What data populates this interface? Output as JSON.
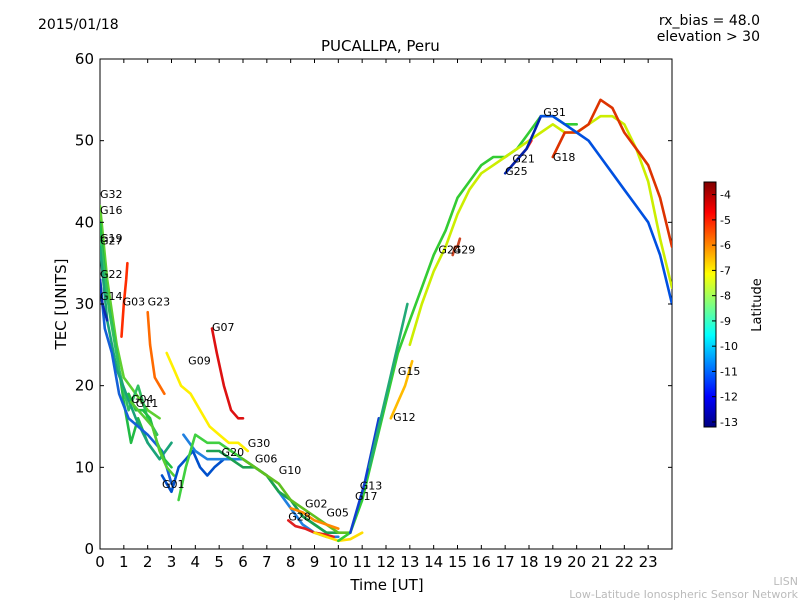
{
  "header": {
    "date": "2015/01/18",
    "rx_bias": "rx_bias = 48.0",
    "elevation": "elevation > 30"
  },
  "footer": {
    "line1": "LISN",
    "line2": "Low-Latitude Ionospheric Sensor Network"
  },
  "chart_data": {
    "type": "line",
    "title": "PUCALLPA, Peru",
    "xlabel": "Time [UT]",
    "ylabel": "TEC [UNITS]",
    "xlim": [
      0,
      24
    ],
    "ylim": [
      0,
      60
    ],
    "x_ticks": [
      "0",
      "1",
      "2",
      "3",
      "4",
      "5",
      "6",
      "7",
      "8",
      "9",
      "10",
      "11",
      "12",
      "13",
      "14",
      "15",
      "16",
      "17",
      "18",
      "19",
      "20",
      "21",
      "22",
      "23"
    ],
    "y_ticks": [
      "0",
      "10",
      "20",
      "30",
      "40",
      "50",
      "60"
    ],
    "colorbar": {
      "label": "Latitude",
      "range": [
        -13.2,
        -3.5
      ],
      "ticks": [
        "-4",
        "-5",
        "-6",
        "-7",
        "-8",
        "-9",
        "-10",
        "-11",
        "-12",
        "-13"
      ],
      "colors": [
        "#00007f",
        "#0000ff",
        "#007fff",
        "#00ffff",
        "#7fff7f",
        "#ffff00",
        "#ff7f00",
        "#ff0000",
        "#7f0000"
      ]
    },
    "series": [
      {
        "name": "G32",
        "label_x": 0.0,
        "label_y": 43.0,
        "color": "#5fd030",
        "x": [
          0,
          0.3,
          0.7,
          1.0,
          1.5,
          2.0,
          2.5
        ],
        "y": [
          42,
          33,
          25,
          21,
          19,
          17,
          16
        ]
      },
      {
        "name": "G16",
        "label_x": 0.0,
        "label_y": 41.0,
        "color": "#22bb44",
        "x": [
          0,
          0.3,
          0.7,
          1.0,
          1.3,
          1.6,
          2.0
        ],
        "y": [
          40,
          31,
          24,
          18,
          13,
          16,
          13
        ]
      },
      {
        "name": "G19",
        "label_x": 0.0,
        "label_y": 37.6,
        "color": "#30c060",
        "x": [
          0,
          0.4,
          0.8,
          1.2,
          1.6,
          2.0,
          2.4
        ],
        "y": [
          38,
          29,
          22,
          17,
          20,
          16,
          14
        ]
      },
      {
        "name": "G27",
        "label_x": 0.0,
        "label_y": 37.3,
        "color": "#1aa37a",
        "x": [
          0,
          0.3,
          0.7,
          1.1,
          1.5,
          2.0,
          2.5,
          3.0
        ],
        "y": [
          37,
          28,
          22,
          19,
          16,
          13,
          11,
          13
        ]
      },
      {
        "name": "G22",
        "label_x": 0.0,
        "label_y": 33.2,
        "color": "#1560d8",
        "x": [
          0,
          0.2,
          0.5,
          0.8,
          1.2,
          1.6,
          2.0,
          2.6,
          3.0
        ],
        "y": [
          33,
          27,
          24,
          19,
          16,
          15,
          14,
          12,
          8
        ]
      },
      {
        "name": "G14",
        "label_x": 0.0,
        "label_y": 30.5,
        "color": "#0b2bb0",
        "x": [
          0,
          0.1,
          0.2,
          0.3
        ],
        "y": [
          33,
          30,
          29,
          28
        ]
      },
      {
        "name": "G03",
        "label_x": 0.95,
        "label_y": 29.8,
        "color": "#ff2d00",
        "x": [
          0.9,
          1.0,
          1.1,
          1.15
        ],
        "y": [
          26,
          30,
          33,
          35
        ]
      },
      {
        "name": "G23",
        "label_x": 2.0,
        "label_y": 29.8,
        "color": "#ff6a00",
        "x": [
          2.0,
          2.1,
          2.3,
          2.5,
          2.7
        ],
        "y": [
          29,
          25,
          21,
          20,
          19
        ]
      },
      {
        "name": "G07",
        "label_x": 4.7,
        "label_y": 26.7,
        "color": "#dd1111",
        "x": [
          4.7,
          4.9,
          5.2,
          5.5,
          5.8,
          6.0
        ],
        "y": [
          27,
          24,
          20,
          17,
          16,
          16
        ]
      },
      {
        "name": "G09",
        "label_x": 3.7,
        "label_y": 22.6,
        "color": "#fff000",
        "x": [
          2.8,
          3.1,
          3.4,
          3.8,
          4.2,
          4.6,
          5.0,
          5.4,
          5.8,
          6.2
        ],
        "y": [
          24,
          22,
          20,
          19,
          17,
          15,
          14,
          13,
          13,
          12
        ]
      },
      {
        "name": "G04",
        "label_x": 1.3,
        "label_y": 17.9,
        "color": "#20c040",
        "x": [
          1.2,
          1.5,
          1.8,
          2.1,
          2.4,
          2.7,
          3.0
        ],
        "y": [
          19,
          17,
          17,
          16,
          13,
          11,
          10
        ]
      },
      {
        "name": "G11",
        "label_x": 1.5,
        "label_y": 17.4,
        "color": "#55cc33",
        "x": [
          1.3,
          1.6,
          1.9,
          2.2,
          2.5,
          2.8,
          3.1
        ],
        "y": [
          18,
          17,
          16,
          15,
          12,
          10,
          9
        ]
      },
      {
        "name": "G01",
        "label_x": 2.6,
        "label_y": 7.5,
        "color": "#0050cc",
        "x": [
          2.6,
          2.8,
          3.0,
          3.3,
          3.6,
          3.9,
          4.2,
          4.5,
          4.8,
          5.2
        ],
        "y": [
          9,
          8,
          7,
          10,
          11,
          12,
          10,
          9,
          10,
          11
        ]
      },
      {
        "name": "G20",
        "label_x": 5.1,
        "label_y": 11.4,
        "color": "#2080e0",
        "x": [
          3.5,
          4.0,
          4.5,
          5.0,
          5.5,
          6.0,
          6.5,
          7.0,
          7.5,
          8.0,
          8.5,
          9.0,
          9.5,
          10.0
        ],
        "y": [
          14,
          12,
          11,
          11,
          11,
          11,
          10,
          9,
          7,
          5,
          3,
          2,
          1.5,
          1.5
        ]
      },
      {
        "name": "G30",
        "label_x": 6.2,
        "label_y": 12.5,
        "color": "#40d040",
        "x": [
          3.3,
          3.6,
          4.0,
          4.5,
          5.0,
          5.5,
          6.0,
          6.5,
          7.0,
          7.5,
          8.0,
          8.5,
          9.0,
          9.5
        ],
        "y": [
          6,
          10,
          14,
          13,
          13,
          12,
          11,
          10,
          9,
          7,
          6,
          4,
          3,
          2
        ]
      },
      {
        "name": "G06",
        "label_x": 6.5,
        "label_y": 10.6,
        "color": "#1ba050",
        "x": [
          4.5,
          5.0,
          5.5,
          6.0,
          6.5,
          7.0,
          7.5,
          8.0,
          8.5,
          9.0,
          9.5,
          10.0
        ],
        "y": [
          12,
          12,
          11,
          10,
          10,
          9,
          7,
          6,
          4,
          3,
          2,
          2
        ]
      },
      {
        "name": "G10",
        "label_x": 7.5,
        "label_y": 9.2,
        "color": "#60c020",
        "x": [
          6.0,
          6.5,
          7.0,
          7.5,
          8.0,
          8.5,
          9.0,
          9.5,
          10.0,
          10.5
        ],
        "y": [
          11,
          10,
          9,
          8,
          6,
          5,
          4,
          3,
          2,
          2
        ]
      },
      {
        "name": "G02",
        "label_x": 8.6,
        "label_y": 5.1,
        "color": "#ff8800",
        "x": [
          8.0,
          8.5,
          9.0,
          9.5,
          10.0
        ],
        "y": [
          5,
          4.5,
          3.5,
          3,
          2.5
        ]
      },
      {
        "name": "G28",
        "label_x": 7.9,
        "label_y": 3.5,
        "color": "#e02020",
        "x": [
          7.9,
          8.2,
          8.6,
          9.0,
          9.4,
          9.8
        ],
        "y": [
          3.5,
          2.8,
          2.5,
          2,
          1.8,
          1.5
        ]
      },
      {
        "name": "G05",
        "label_x": 9.5,
        "label_y": 4.0,
        "color": "#ffdd00",
        "x": [
          9.0,
          9.5,
          10.0,
          10.5,
          11.0
        ],
        "y": [
          2,
          1.5,
          1,
          1.2,
          2
        ]
      },
      {
        "name": "G17",
        "label_x": 10.7,
        "label_y": 6.0,
        "color": "#33cc33",
        "x": [
          10.0,
          10.5,
          11.0,
          11.5,
          12.0,
          12.5,
          13.0,
          13.5,
          14.0,
          14.5,
          15.0,
          15.5,
          16.0,
          16.5,
          17.0,
          17.5,
          18.0,
          18.5,
          19.0,
          19.5,
          20.0
        ],
        "y": [
          1,
          2,
          6,
          12,
          18,
          24,
          28,
          32,
          36,
          39,
          43,
          45,
          47,
          48,
          48,
          49,
          51,
          53,
          53,
          52,
          52
        ]
      },
      {
        "name": "G13",
        "label_x": 10.9,
        "label_y": 7.3,
        "color": "#1040d0",
        "x": [
          10.5,
          10.8,
          11.1,
          11.4,
          11.7
        ],
        "y": [
          2,
          5,
          8,
          12,
          16
        ]
      },
      {
        "name": "G15",
        "label_x": 12.5,
        "label_y": 21.3,
        "color": "#22aa77",
        "x": [
          11.3,
          11.7,
          12.1,
          12.5,
          12.9
        ],
        "y": [
          10,
          15,
          20,
          25,
          30
        ]
      },
      {
        "name": "G12",
        "label_x": 12.3,
        "label_y": 15.7,
        "color": "#ffbb00",
        "x": [
          12.2,
          12.5,
          12.8,
          13.1
        ],
        "y": [
          16,
          18,
          20,
          23
        ]
      },
      {
        "name": "G24",
        "label_x": 14.2,
        "label_y": 36.2,
        "color": "#ccee00",
        "x": [
          13.0,
          13.5,
          14.0,
          14.5,
          15.0,
          15.5,
          16.0,
          16.5,
          17.0,
          17.5,
          18.0,
          18.5,
          19.0,
          19.5,
          20.0,
          20.5,
          21.0,
          21.5,
          22.0,
          22.5,
          23.0,
          23.5,
          24.0
        ],
        "y": [
          25,
          30,
          34,
          37,
          41,
          44,
          46,
          47,
          48,
          49,
          50,
          51,
          52,
          51,
          51,
          52,
          53,
          53,
          52,
          49,
          45,
          38,
          32
        ]
      },
      {
        "name": "G29",
        "label_x": 14.8,
        "label_y": 36.2,
        "color": "#cc4422",
        "x": [
          14.8,
          14.9,
          15.0,
          15.1
        ],
        "y": [
          36,
          37,
          37,
          38
        ]
      },
      {
        "name": "G21",
        "label_x": 17.3,
        "label_y": 47.3,
        "color": "#ff2222",
        "x": [
          17.3,
          17.6,
          17.9,
          18.1
        ],
        "y": [
          47,
          48,
          49,
          50
        ]
      },
      {
        "name": "G25",
        "label_x": 17.0,
        "label_y": 45.8,
        "color": "#0022aa",
        "x": [
          17.0,
          17.3,
          17.6,
          17.9,
          18.2,
          18.5
        ],
        "y": [
          46,
          47,
          48,
          49,
          51,
          53
        ]
      },
      {
        "name": "G18",
        "label_x": 19.0,
        "label_y": 47.5,
        "color": "#dd3300",
        "x": [
          19.0,
          19.5,
          20.0,
          20.5,
          21.0,
          21.5,
          22.0,
          22.5,
          23.0,
          23.5,
          24.0
        ],
        "y": [
          48,
          51,
          51,
          52,
          55,
          54,
          51,
          49,
          47,
          43,
          37
        ]
      },
      {
        "name": "G31",
        "label_x": 18.6,
        "label_y": 53.0,
        "color": "#0050e0",
        "x": [
          18.5,
          19.0,
          19.5,
          20.0,
          20.5,
          21.0,
          21.5,
          22.0,
          22.5,
          23.0,
          23.5,
          24.0
        ],
        "y": [
          53,
          53,
          52,
          51,
          50,
          48,
          46,
          44,
          42,
          40,
          36,
          30
        ]
      }
    ]
  }
}
